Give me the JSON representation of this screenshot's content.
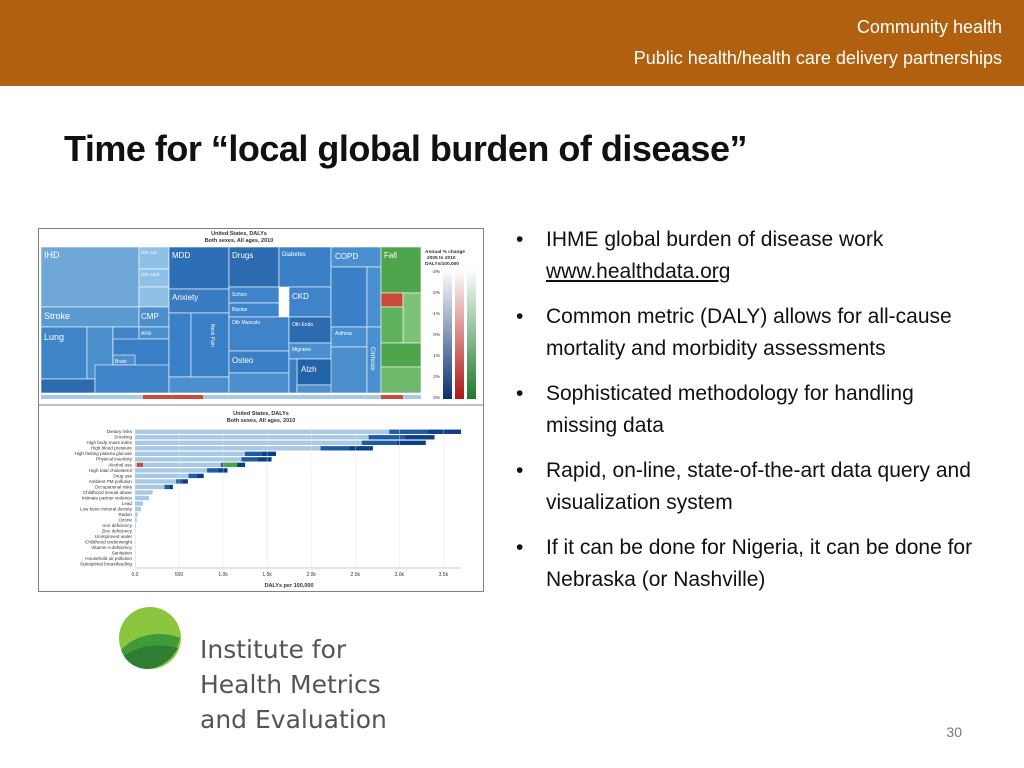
{
  "header": {
    "line1": "Community health",
    "line2": "Public health/health care delivery partnerships",
    "bar_color": "#b0600f"
  },
  "slide_title": "Time for “local global burden of disease”",
  "bullets": [
    {
      "text": "IHME global burden of disease work ",
      "link": "www.healthdata.org"
    },
    {
      "text": "Common metric (DALY) allows for all-cause mortality and morbidity assessments"
    },
    {
      "text": "Sophisticated methodology for handling missing data"
    },
    {
      "text": "Rapid, on-line, state-of-the-art data query and visualization system"
    },
    {
      "text": "If it can be done for Nigeria, it can be done for Nebraska (or Nashville)"
    }
  ],
  "logo": {
    "line1": "Institute for",
    "line2": "Health Metrics",
    "line3": "and Evaluation",
    "icon": "ihme-leaf-icon"
  },
  "page_number": "30",
  "treemap": {
    "title_line1": "United States, DALYs",
    "title_line2": "Both sexes, All ages, 2010",
    "legend_title": [
      "Annual % change",
      "2005 to 2010",
      "DALYs/100,000"
    ],
    "legend_ticks": [
      "-3%",
      "-2%",
      "-1%",
      "0%",
      "1%",
      "2%",
      "3%"
    ],
    "cells": [
      {
        "label": "IHD",
        "fill": "#6fa8d6"
      },
      {
        "label": "Oth Circ",
        "fill": "#8fc0e6"
      },
      {
        "label": "Oth Card",
        "fill": "#8fc0e6"
      },
      {
        "label": "Stroke",
        "fill": "#5b9ad0"
      },
      {
        "label": "Lung",
        "fill": "#3f86c8"
      },
      {
        "label": "CMP",
        "fill": "#4b8fcd"
      },
      {
        "label": "AFib",
        "fill": "#4b8fcd"
      },
      {
        "label": "MDD",
        "fill": "#2d6fb6"
      },
      {
        "label": "Anxiety",
        "fill": "#3a7cc2"
      },
      {
        "label": "Drugs",
        "fill": "#2c6bb0"
      },
      {
        "label": "Diabetes",
        "fill": "#3a80c6"
      },
      {
        "label": "COPD",
        "fill": "#4a8fd0"
      },
      {
        "label": "Fall",
        "fill": "#4fa54c"
      },
      {
        "label": "CKD",
        "fill": "#3f84c9"
      },
      {
        "label": "Schizo",
        "fill": "#3f84c9"
      },
      {
        "label": "Bipolar",
        "fill": "#3f84c9"
      },
      {
        "label": "Oth Musculo",
        "fill": "#3f84c9"
      },
      {
        "label": "Oth Endo",
        "fill": "#2c6bb0"
      },
      {
        "label": "Migraine",
        "fill": "#4a8fd0"
      },
      {
        "label": "Asthma",
        "fill": "#4a8fd0"
      },
      {
        "label": "Osteo",
        "fill": "#3a80c6"
      },
      {
        "label": "Alzh",
        "fill": "#2262a8"
      },
      {
        "label": "Cirrhosis",
        "fill": "#4a8fd0"
      },
      {
        "label": "Brain",
        "fill": "#3f84c9"
      },
      {
        "label": "Neck Pain",
        "fill": "#3a80c6"
      },
      {
        "label": "Low Back Pain",
        "fill": "#3a80c6"
      }
    ]
  },
  "chart_data": {
    "type": "bar",
    "title": "United States, DALYs",
    "subtitle": "Both sexes, All ages, 2010",
    "xlabel": "DALYs per 100,000",
    "xlim": [
      0,
      3700
    ],
    "xticks": [
      "0.0",
      "500",
      "1.0k",
      "1.5k",
      "2.0k",
      "2.5k",
      "3.0k",
      "3.5k"
    ],
    "tick_values": [
      0,
      500,
      1000,
      1500,
      2000,
      2500,
      3000,
      3500
    ],
    "categories": [
      "Dietary risks",
      "Smoking",
      "High body-mass index",
      "High blood pressure",
      "High fasting plasma glucose",
      "Physical inactivity",
      "Alcohol use",
      "High total cholesterol",
      "Drug use",
      "Ambient PM pollution",
      "Occupational risks",
      "Childhood sexual abuse",
      "Intimate partner violence",
      "Lead",
      "Low bone mineral density",
      "Radon",
      "Ozone",
      "Iron deficiency",
      "Zinc deficiency",
      "Unimproved water",
      "Childhood underweight",
      "Vitamin A deficiency",
      "Sanitation",
      "Household air pollution",
      "Suboptimal breastfeeding"
    ],
    "values": [
      3700,
      3400,
      3300,
      2700,
      1600,
      1550,
      1250,
      1050,
      780,
      600,
      430,
      200,
      160,
      90,
      70,
      30,
      20,
      10,
      5,
      3,
      3,
      2,
      2,
      2,
      2
    ]
  }
}
